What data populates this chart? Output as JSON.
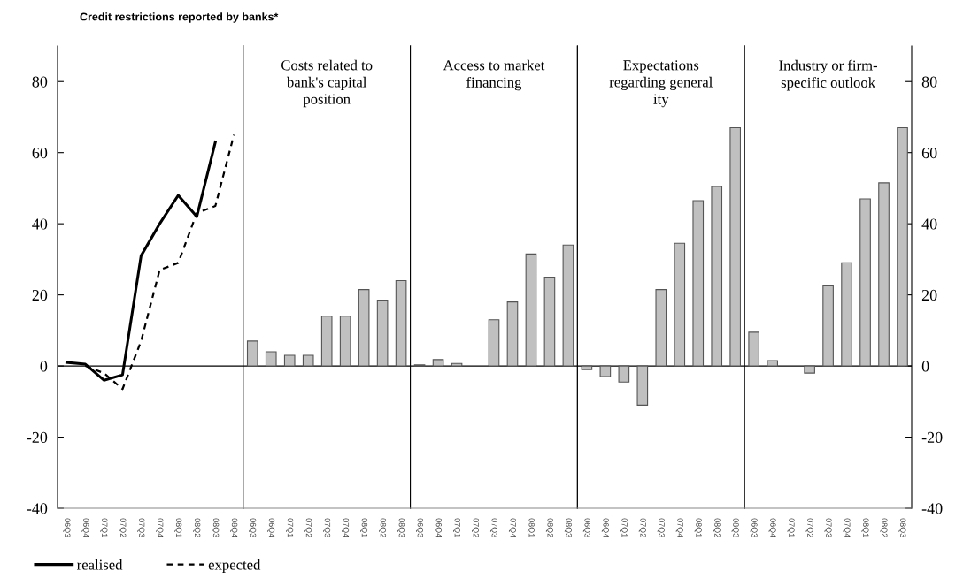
{
  "chart_data": [
    {
      "type": "line",
      "title": "Credit restrictions reported by banks*",
      "categories": [
        "06Q3",
        "06Q4",
        "07Q1",
        "07Q2",
        "07Q3",
        "07Q4",
        "08Q1",
        "08Q2",
        "08Q3",
        "08Q4"
      ],
      "series": [
        {
          "name": "realised",
          "color": "#000000",
          "line_style": "solid",
          "values": [
            1,
            0.5,
            -4,
            -2.5,
            31,
            40,
            48,
            42,
            63,
            null
          ]
        },
        {
          "name": "expected",
          "color": "#000000",
          "line_style": "dashed",
          "values": [
            null,
            0,
            -2,
            -6.5,
            7,
            27,
            29,
            43,
            45,
            65
          ]
        }
      ],
      "ylim": [
        -40,
        90
      ],
      "yticks": [
        -40,
        -20,
        0,
        20,
        40,
        60,
        80
      ],
      "legend": "bottom",
      "ref_lines": [
        {
          "axis": "y",
          "value": 0,
          "color": "#000000"
        }
      ]
    },
    {
      "type": "bar",
      "title": "Costs related to\nbank's capital\nposition",
      "categories": [
        "06Q3",
        "06Q4",
        "07Q1",
        "07Q2",
        "07Q3",
        "07Q4",
        "08Q1",
        "08Q2",
        "08Q3"
      ],
      "values": [
        7,
        4,
        3,
        3,
        14,
        14,
        21.5,
        18.5,
        24
      ],
      "color": "#c0c0c0",
      "ylim": [
        -40,
        90
      ],
      "tick_labels": "x",
      "ref_lines": [
        {
          "axis": "y",
          "value": 0,
          "color": "#000000"
        }
      ]
    },
    {
      "type": "bar",
      "title": "Access to market\nfinancing",
      "categories": [
        "06Q3",
        "06Q4",
        "07Q1",
        "07Q2",
        "07Q3",
        "07Q4",
        "08Q1",
        "08Q2",
        "08Q3"
      ],
      "values": [
        0.3,
        1.8,
        0.7,
        null,
        13,
        18,
        31.5,
        25,
        34
      ],
      "color": "#c0c0c0",
      "ylim": [
        -40,
        90
      ],
      "tick_labels": "x",
      "ref_lines": [
        {
          "axis": "y",
          "value": 0,
          "color": "#000000"
        }
      ]
    },
    {
      "type": "bar",
      "title": "Expectations\nregarding general\nity",
      "categories": [
        "06Q3",
        "06Q4",
        "07Q1",
        "07Q2",
        "07Q3",
        "07Q4",
        "08Q1",
        "08Q2",
        "08Q3"
      ],
      "values": [
        -1,
        -3,
        -4.5,
        -11,
        21.5,
        34.5,
        46.5,
        50.5,
        67
      ],
      "color": "#c0c0c0",
      "ylim": [
        -40,
        90
      ],
      "tick_labels": "x",
      "ref_lines": [
        {
          "axis": "y",
          "value": 0,
          "color": "#000000"
        }
      ]
    },
    {
      "type": "bar",
      "title": "Industry or firm-\nspecific outlook",
      "categories": [
        "06Q3",
        "06Q4",
        "07Q1",
        "07Q2",
        "07Q3",
        "07Q4",
        "08Q1",
        "08Q2",
        "08Q3"
      ],
      "values": [
        9.5,
        1.5,
        null,
        -2,
        22.5,
        29,
        47,
        51.5,
        67
      ],
      "color": "#c0c0c0",
      "ylim": [
        -40,
        90
      ],
      "yticks": [
        -40,
        -20,
        0,
        20,
        40,
        60,
        80
      ],
      "ref_lines": [
        {
          "axis": "y",
          "value": 0,
          "color": "#000000"
        }
      ]
    }
  ]
}
